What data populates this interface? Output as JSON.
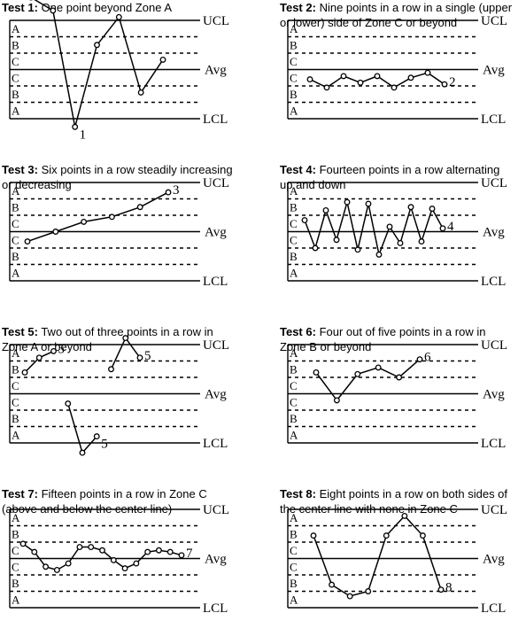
{
  "zone_labels": [
    "A",
    "B",
    "C",
    "C",
    "B",
    "A"
  ],
  "limit_labels": {
    "ucl": "UCL",
    "avg": "Avg",
    "lcl": "LCL"
  },
  "tests": [
    {
      "title": "Test 1:",
      "desc_lines": [
        "One point beyond Zone A"
      ],
      "series": [
        {
          "points": [
            [
              0,
              4.4
            ],
            [
              1,
              3.6
            ],
            [
              2,
              -3.5
            ],
            [
              3,
              1.5
            ],
            [
              4,
              3.2
            ],
            [
              5,
              -1.4
            ],
            [
              6,
              0.6
            ]
          ]
        }
      ],
      "marker": {
        "text": "1",
        "point": [
          2,
          -3.5
        ]
      }
    },
    {
      "title": "Test 2:",
      "desc_lines": [
        "Nine points in a row in a single (upper",
        "or lower) side of Zone C or beyond"
      ],
      "series": [
        {
          "points": [
            [
              0,
              -0.6
            ],
            [
              1,
              -1.1
            ],
            [
              2,
              -0.4
            ],
            [
              3,
              -0.8
            ],
            [
              4,
              -0.4
            ],
            [
              5,
              -1.1
            ],
            [
              6,
              -0.5
            ],
            [
              7,
              -0.2
            ],
            [
              8,
              -0.9
            ]
          ]
        }
      ],
      "marker": {
        "text": "2",
        "point": [
          8,
          -0.9
        ]
      }
    },
    {
      "title": "Test 3:",
      "desc_lines": [
        "Six points in a row steadily increasing",
        "or decreasing"
      ],
      "series": [
        {
          "points": [
            [
              0,
              -0.6
            ],
            [
              1,
              0
            ],
            [
              2,
              0.6
            ],
            [
              3,
              0.9
            ],
            [
              4,
              1.5
            ],
            [
              5,
              2.4
            ]
          ]
        }
      ],
      "marker": {
        "text": "3",
        "point": [
          5,
          2.4
        ]
      }
    },
    {
      "title": "Test 4:",
      "desc_lines": [
        "Fourteen points in a row alternating",
        "up and down"
      ],
      "series": [
        {
          "points": [
            [
              0,
              0.7
            ],
            [
              1,
              -1
            ],
            [
              2,
              1.3
            ],
            [
              3,
              -0.5
            ],
            [
              4,
              1.8
            ],
            [
              5,
              -1.1
            ],
            [
              6,
              1.7
            ],
            [
              7,
              -1.4
            ],
            [
              8,
              0.3
            ],
            [
              9,
              -0.7
            ],
            [
              10,
              1.5
            ],
            [
              11,
              -0.6
            ],
            [
              12,
              1.4
            ],
            [
              13,
              0.2
            ]
          ]
        }
      ],
      "marker": {
        "text": "4",
        "point": [
          13,
          0.2
        ]
      }
    },
    {
      "title": "Test 5:",
      "desc_lines": [
        "Two out of three points in a row in",
        "Zone A or beyond"
      ],
      "series": [
        {
          "points": [
            [
              0,
              1.3
            ],
            [
              1,
              2.2
            ],
            [
              2,
              2.6
            ]
          ]
        },
        {
          "points": [
            [
              3,
              -0.6
            ],
            [
              4,
              -3.6
            ],
            [
              5,
              -2.6
            ]
          ]
        },
        {
          "points": [
            [
              6,
              1.5
            ],
            [
              7,
              3.4
            ],
            [
              8,
              2.2
            ]
          ]
        }
      ],
      "markers": [
        {
          "text": "5",
          "point": [
            2,
            2.6
          ]
        },
        {
          "text": "5",
          "point": [
            5,
            -2.6
          ]
        },
        {
          "text": "5",
          "point": [
            8,
            2.2
          ]
        }
      ]
    },
    {
      "title": "Test 6:",
      "desc_lines": [
        "Four out of five points in a row in",
        "Zone B or beyond"
      ],
      "series": [
        {
          "points": [
            [
              0,
              1.3
            ],
            [
              1,
              -0.4
            ],
            [
              2,
              1.2
            ],
            [
              3,
              1.6
            ],
            [
              4,
              1.0
            ],
            [
              5,
              2.1
            ]
          ]
        }
      ],
      "marker": {
        "text": "6",
        "point": [
          5,
          2.1
        ]
      }
    },
    {
      "title": "Test 7:",
      "desc_lines": [
        "Fifteen points in a row in Zone C",
        "(above and below the center line)"
      ],
      "series": [
        {
          "points": [
            [
              0,
              0.9
            ],
            [
              1,
              0.4
            ],
            [
              2,
              -0.5
            ],
            [
              3,
              -0.7
            ],
            [
              4,
              -0.3
            ],
            [
              5,
              0.7
            ],
            [
              6,
              0.7
            ],
            [
              7,
              0.5
            ],
            [
              8,
              -0.1
            ],
            [
              9,
              -0.6
            ],
            [
              10,
              -0.3
            ],
            [
              11,
              0.4
            ],
            [
              12,
              0.5
            ],
            [
              13,
              0.4
            ],
            [
              14,
              0.2
            ]
          ]
        }
      ],
      "marker": {
        "text": "7",
        "point": [
          14,
          0.2
        ]
      }
    },
    {
      "title": "Test 8:",
      "desc_lines": [
        "Eight points in a row on both sides of",
        "the center line with none in Zone C"
      ],
      "series": [
        {
          "points": [
            [
              0,
              1.4
            ],
            [
              1,
              -1.6
            ],
            [
              2,
              -2.3
            ],
            [
              3,
              -2.0
            ],
            [
              4,
              1.4
            ],
            [
              5,
              2.6
            ],
            [
              6,
              1.4
            ],
            [
              7,
              -1.9
            ]
          ]
        }
      ],
      "marker": {
        "text": "8",
        "point": [
          7,
          -1.9
        ]
      }
    }
  ]
}
